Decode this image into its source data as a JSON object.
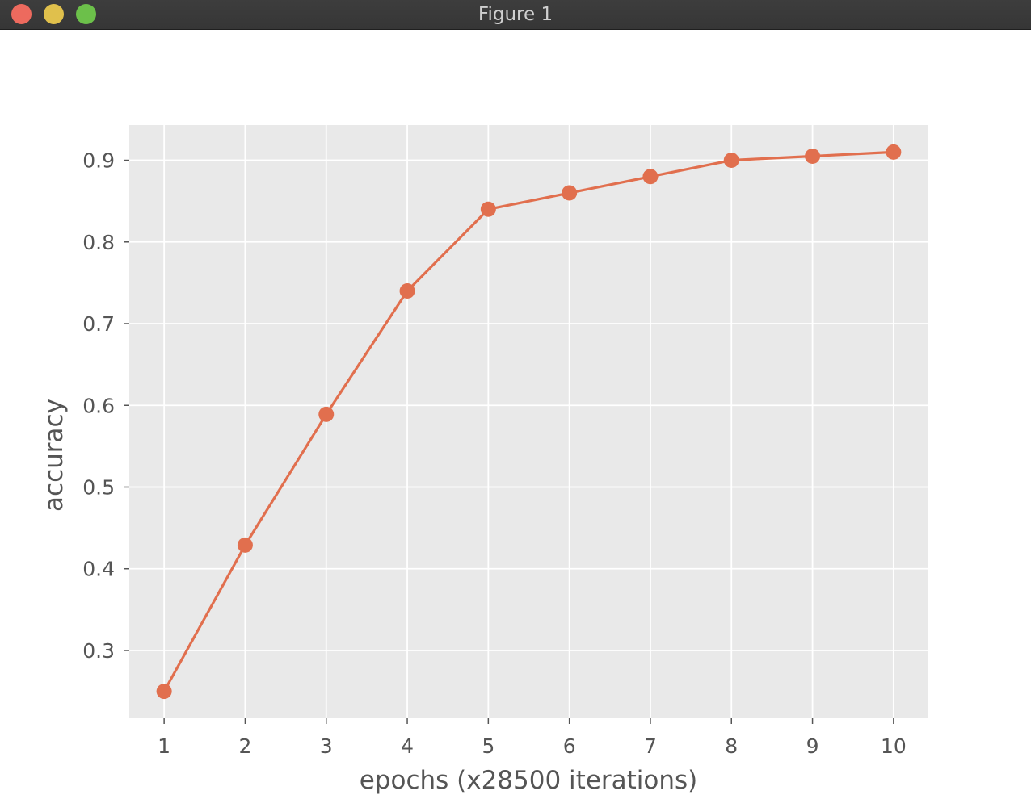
{
  "window": {
    "title": "Figure 1",
    "buttons": {
      "close_color": "#ed6a5e",
      "minimize_color": "#e0c04c",
      "maximize_color": "#6cc04a"
    }
  },
  "chart_data": {
    "type": "line",
    "title": "",
    "xlabel": "epochs (x28500 iterations)",
    "ylabel": "accuracy",
    "x": [
      1,
      2,
      3,
      4,
      5,
      6,
      7,
      8,
      9,
      10
    ],
    "series": [
      {
        "values": [
          0.25,
          0.429,
          0.589,
          0.74,
          0.84,
          0.86,
          0.88,
          0.9,
          0.905,
          0.91
        ],
        "color": "#e16f4e",
        "marker": "circle"
      }
    ],
    "xticks": [
      "1",
      "2",
      "3",
      "4",
      "5",
      "6",
      "7",
      "8",
      "9",
      "10"
    ],
    "yticks": [
      "0.3",
      "0.4",
      "0.5",
      "0.6",
      "0.7",
      "0.8",
      "0.9"
    ],
    "ytick_values": [
      0.3,
      0.4,
      0.5,
      0.6,
      0.7,
      0.8,
      0.9
    ],
    "xlim": [
      0.57,
      10.43
    ],
    "ylim": [
      0.217,
      0.943
    ],
    "grid": true,
    "style": "ggplot",
    "background_color": "#e9e9e9",
    "grid_color": "#ffffff",
    "tick_label_color": "#555555"
  }
}
